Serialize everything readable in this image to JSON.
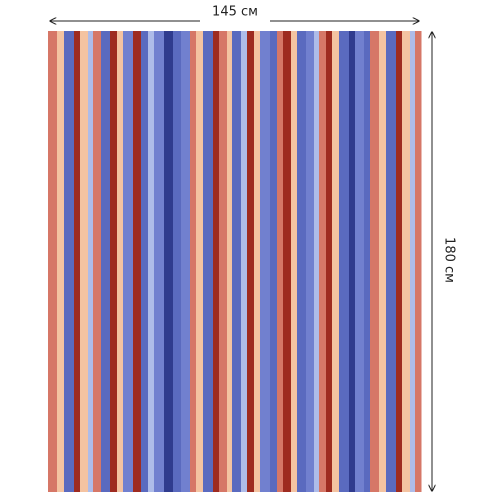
{
  "width_label": "145 см",
  "height_label": "180 см"
}
